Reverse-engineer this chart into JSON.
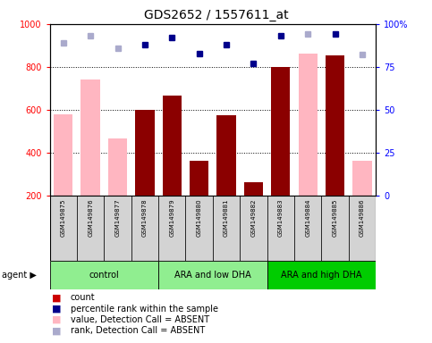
{
  "title": "GDS2652 / 1557611_at",
  "samples": [
    "GSM149875",
    "GSM149876",
    "GSM149877",
    "GSM149878",
    "GSM149879",
    "GSM149880",
    "GSM149881",
    "GSM149882",
    "GSM149883",
    "GSM149884",
    "GSM149885",
    "GSM149886"
  ],
  "bar_values": [
    null,
    null,
    null,
    600,
    665,
    360,
    575,
    260,
    800,
    null,
    855,
    null
  ],
  "absent_values": [
    580,
    740,
    465,
    null,
    null,
    null,
    null,
    null,
    null,
    860,
    null,
    360
  ],
  "rank_present": [
    null,
    null,
    null,
    88,
    92,
    83,
    88,
    77,
    93,
    null,
    94,
    null
  ],
  "rank_absent": [
    89,
    93,
    86,
    null,
    null,
    null,
    null,
    null,
    null,
    94,
    null,
    82
  ],
  "group_configs": [
    {
      "label": "control",
      "color": "#90EE90",
      "start": 0,
      "end": 3
    },
    {
      "label": "ARA and low DHA",
      "color": "#90EE90",
      "start": 4,
      "end": 7
    },
    {
      "label": "ARA and high DHA",
      "color": "#00CC00",
      "start": 8,
      "end": 11
    }
  ],
  "ylim_left": [
    200,
    1000
  ],
  "ylim_right": [
    0,
    100
  ],
  "yticks_left": [
    200,
    400,
    600,
    800,
    1000
  ],
  "yticks_right": [
    0,
    25,
    50,
    75,
    100
  ],
  "bar_color": "#8B0000",
  "absent_bar_color": "#FFB6C1",
  "rank_present_color": "#00008B",
  "rank_absent_color": "#AAAACC",
  "grid_lines": [
    400,
    600,
    800
  ],
  "legend_items": [
    {
      "color": "#CC0000",
      "label": "count"
    },
    {
      "color": "#00008B",
      "label": "percentile rank within the sample"
    },
    {
      "color": "#FFB6C1",
      "label": "value, Detection Call = ABSENT"
    },
    {
      "color": "#AAAACC",
      "label": "rank, Detection Call = ABSENT"
    }
  ],
  "title_fontsize": 10,
  "tick_fontsize": 7,
  "sample_fontsize": 5,
  "group_fontsize": 7,
  "legend_fontsize": 7
}
